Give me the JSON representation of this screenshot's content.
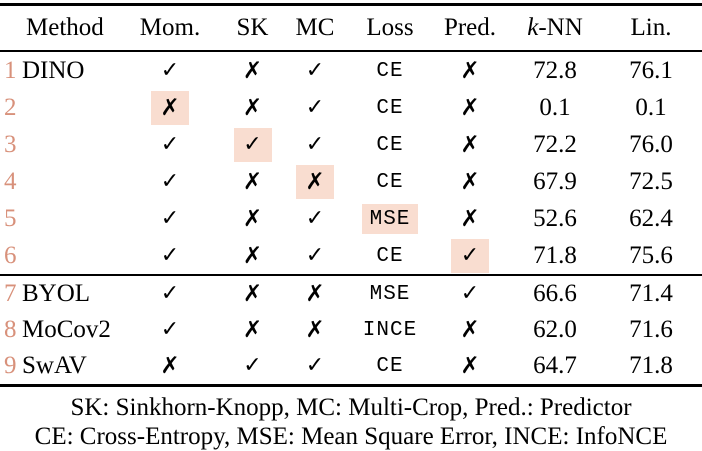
{
  "colors": {
    "highlight": "#f9ddd0",
    "row_number": "#d8917b",
    "text": "#000000",
    "background": "#ffffff"
  },
  "marks": {
    "check": "✓",
    "cross": "✗"
  },
  "table": {
    "header": {
      "method": "Method",
      "mom": "Mom.",
      "sk": "SK",
      "mc": "MC",
      "loss": "Loss",
      "pred": "Pred.",
      "knn_italic": "k",
      "knn_rest": "-NN",
      "lin": "Lin."
    },
    "rows": [
      {
        "group": "a",
        "num": "1",
        "method": "DINO",
        "mom": "check",
        "sk": "cross",
        "mc": "check",
        "loss": "CE",
        "pred": "cross",
        "knn": "72.8",
        "lin": "76.1",
        "highlight": null
      },
      {
        "group": "a",
        "num": "2",
        "method": "",
        "mom": "cross",
        "sk": "cross",
        "mc": "check",
        "loss": "CE",
        "pred": "cross",
        "knn": "0.1",
        "lin": "0.1",
        "highlight": "mom"
      },
      {
        "group": "a",
        "num": "3",
        "method": "",
        "mom": "check",
        "sk": "check",
        "mc": "check",
        "loss": "CE",
        "pred": "cross",
        "knn": "72.2",
        "lin": "76.0",
        "highlight": "sk"
      },
      {
        "group": "a",
        "num": "4",
        "method": "",
        "mom": "check",
        "sk": "cross",
        "mc": "cross",
        "loss": "CE",
        "pred": "cross",
        "knn": "67.9",
        "lin": "72.5",
        "highlight": "mc"
      },
      {
        "group": "a",
        "num": "5",
        "method": "",
        "mom": "check",
        "sk": "cross",
        "mc": "check",
        "loss": "MSE",
        "pred": "cross",
        "knn": "52.6",
        "lin": "62.4",
        "highlight": "loss"
      },
      {
        "group": "a",
        "num": "6",
        "method": "",
        "mom": "check",
        "sk": "cross",
        "mc": "check",
        "loss": "CE",
        "pred": "check",
        "knn": "71.8",
        "lin": "75.6",
        "highlight": "pred"
      },
      {
        "group": "b",
        "num": "7",
        "method": "BYOL",
        "mom": "check",
        "sk": "cross",
        "mc": "cross",
        "loss": "MSE",
        "pred": "check",
        "knn": "66.6",
        "lin": "71.4",
        "highlight": null
      },
      {
        "group": "b",
        "num": "8",
        "method": "MoCov2",
        "mom": "check",
        "sk": "cross",
        "mc": "cross",
        "loss": "INCE",
        "pred": "cross",
        "knn": "62.0",
        "lin": "71.6",
        "highlight": null
      },
      {
        "group": "b",
        "num": "9",
        "method": "SwAV",
        "mom": "cross",
        "sk": "check",
        "mc": "check",
        "loss": "CE",
        "pred": "cross",
        "knn": "64.7",
        "lin": "71.8",
        "highlight": null
      }
    ],
    "footnotes": [
      "SK: Sinkhorn-Knopp, MC: Multi-Crop, Pred.: Predictor",
      "CE: Cross-Entropy, MSE: Mean Square Error, INCE: InfoNCE"
    ]
  }
}
